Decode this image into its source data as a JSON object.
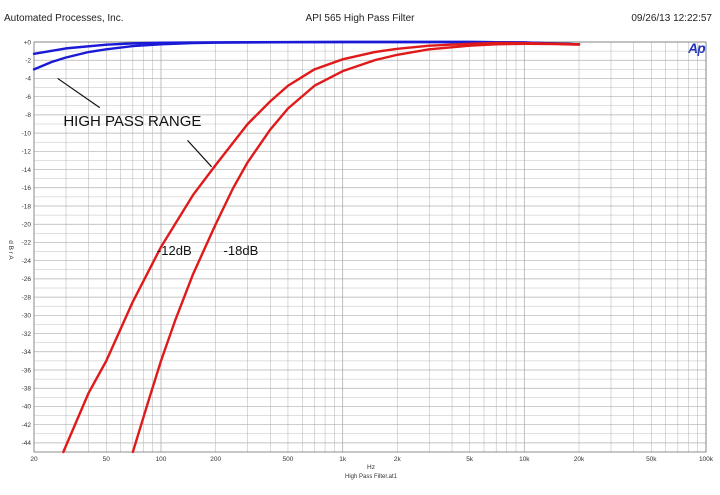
{
  "header": {
    "company": "Automated Processes, Inc.",
    "title": "API 565 High Pass Filter",
    "datetime": "09/26/13 12:22:57"
  },
  "logo_text": "Ap",
  "footer": {
    "xlabel": "Hz",
    "file_name": "High Pass Filter.at1"
  },
  "ylabel": "d B r A",
  "colors": {
    "blue": "#1a1ad6",
    "red": "#e01a1a",
    "grid": "#b0b0b0"
  },
  "chart_data": {
    "type": "line",
    "x_scale": "log",
    "xlim": [
      20,
      100000
    ],
    "ylim": [
      -45,
      0
    ],
    "x_ticks": [
      {
        "v": 20,
        "label": "20"
      },
      {
        "v": 50,
        "label": "50"
      },
      {
        "v": 100,
        "label": "100"
      },
      {
        "v": 200,
        "label": "200"
      },
      {
        "v": 500,
        "label": "500"
      },
      {
        "v": 1000,
        "label": "1k"
      },
      {
        "v": 2000,
        "label": "2k"
      },
      {
        "v": 5000,
        "label": "5k"
      },
      {
        "v": 10000,
        "label": "10k"
      },
      {
        "v": 20000,
        "label": "20k"
      },
      {
        "v": 50000,
        "label": "50k"
      },
      {
        "v": 100000,
        "label": "100k"
      }
    ],
    "y_ticks": [
      {
        "v": 0,
        "label": "+0"
      },
      {
        "v": -2,
        "label": "-2"
      },
      {
        "v": -4,
        "label": "-4"
      },
      {
        "v": -6,
        "label": "-6"
      },
      {
        "v": -8,
        "label": "-8"
      },
      {
        "v": -10,
        "label": "-10"
      },
      {
        "v": -12,
        "label": "-12"
      },
      {
        "v": -14,
        "label": "-14"
      },
      {
        "v": -16,
        "label": "-16"
      },
      {
        "v": -18,
        "label": "-18"
      },
      {
        "v": -20,
        "label": "-20"
      },
      {
        "v": -22,
        "label": "-22"
      },
      {
        "v": -24,
        "label": "-24"
      },
      {
        "v": -26,
        "label": "-26"
      },
      {
        "v": -28,
        "label": "-28"
      },
      {
        "v": -30,
        "label": "-30"
      },
      {
        "v": -32,
        "label": "-32"
      },
      {
        "v": -34,
        "label": "-34"
      },
      {
        "v": -36,
        "label": "-36"
      },
      {
        "v": -38,
        "label": "-38"
      },
      {
        "v": -40,
        "label": "-40"
      },
      {
        "v": -42,
        "label": "-42"
      },
      {
        "v": -44,
        "label": "-44"
      }
    ],
    "grid": true,
    "series": [
      {
        "color": "#1a1ad6",
        "points": [
          [
            20,
            -1.3
          ],
          [
            30,
            -0.7
          ],
          [
            50,
            -0.3
          ],
          [
            70,
            -0.15
          ],
          [
            100,
            -0.08
          ],
          [
            200,
            -0.03
          ],
          [
            500,
            -0.01
          ],
          [
            1000,
            0
          ],
          [
            5000,
            0
          ],
          [
            10000,
            -0.05
          ],
          [
            20000,
            -0.25
          ]
        ]
      },
      {
        "color": "#1a1ad6",
        "points": [
          [
            20,
            -3.0
          ],
          [
            25,
            -2.2
          ],
          [
            30,
            -1.7
          ],
          [
            40,
            -1.1
          ],
          [
            50,
            -0.8
          ],
          [
            70,
            -0.45
          ],
          [
            100,
            -0.25
          ],
          [
            150,
            -0.12
          ],
          [
            200,
            -0.07
          ],
          [
            500,
            -0.02
          ],
          [
            1000,
            0
          ],
          [
            5000,
            0
          ],
          [
            10000,
            -0.05
          ],
          [
            20000,
            -0.25
          ]
        ]
      },
      {
        "color": "#e01a1a",
        "points": [
          [
            29,
            -45
          ],
          [
            40,
            -38.5
          ],
          [
            50,
            -35
          ],
          [
            70,
            -28.5
          ],
          [
            100,
            -22.5
          ],
          [
            150,
            -16.8
          ],
          [
            200,
            -13.5
          ],
          [
            300,
            -9.0
          ],
          [
            400,
            -6.5
          ],
          [
            500,
            -4.8
          ],
          [
            700,
            -3.0
          ],
          [
            1000,
            -1.9
          ],
          [
            1500,
            -1.1
          ],
          [
            2000,
            -0.75
          ],
          [
            3000,
            -0.4
          ],
          [
            5000,
            -0.2
          ],
          [
            7000,
            -0.1
          ],
          [
            10000,
            -0.12
          ],
          [
            15000,
            -0.2
          ],
          [
            20000,
            -0.25
          ]
        ]
      },
      {
        "color": "#e01a1a",
        "points": [
          [
            70,
            -45
          ],
          [
            85,
            -39.5
          ],
          [
            100,
            -35
          ],
          [
            120,
            -30.5
          ],
          [
            150,
            -25.5
          ],
          [
            200,
            -20.0
          ],
          [
            250,
            -16.0
          ],
          [
            300,
            -13.2
          ],
          [
            400,
            -9.6
          ],
          [
            500,
            -7.3
          ],
          [
            700,
            -4.8
          ],
          [
            1000,
            -3.2
          ],
          [
            1500,
            -2.0
          ],
          [
            2000,
            -1.4
          ],
          [
            3000,
            -0.8
          ],
          [
            5000,
            -0.4
          ],
          [
            7000,
            -0.25
          ],
          [
            10000,
            -0.2
          ],
          [
            15000,
            -0.22
          ],
          [
            20000,
            -0.3
          ]
        ]
      }
    ],
    "annotations": [
      {
        "text": "HIGH PASS RANGE",
        "x": 29,
        "y": -9.2,
        "size": "big"
      },
      {
        "text": "-12dB",
        "x": 95,
        "y": -23.4,
        "size": "normal"
      },
      {
        "text": "-18dB",
        "x": 221,
        "y": -23.4,
        "size": "normal"
      }
    ],
    "pointer_lines": [
      {
        "from": [
          27,
          -4.0
        ],
        "to": [
          46,
          -7.2
        ]
      },
      {
        "from": [
          140,
          -10.8
        ],
        "to": [
          190,
          -13.7
        ]
      }
    ]
  }
}
